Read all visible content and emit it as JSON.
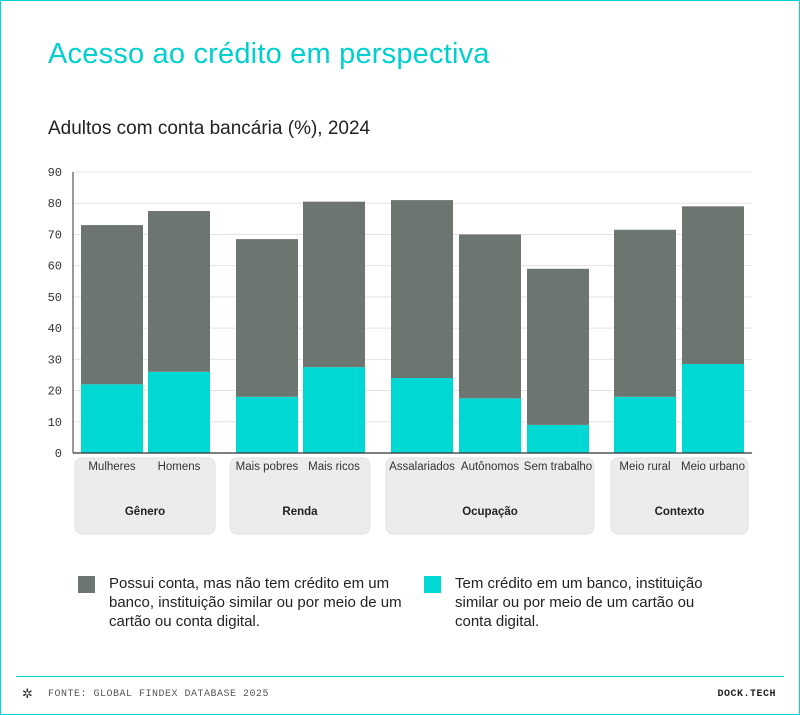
{
  "title": "Acesso ao crédito em perspectiva",
  "subtitle": "Adultos com conta bancária (%), 2024",
  "colors": {
    "accent": "#00cfd0",
    "gray": "#6d7571",
    "cyan": "#00d8d4"
  },
  "chart_data": {
    "type": "bar",
    "stacked": true,
    "title": "Adultos com conta bancária (%), 2024",
    "ylim": [
      0,
      90
    ],
    "yticks": [
      0,
      10,
      20,
      30,
      40,
      50,
      60,
      70,
      80,
      90
    ],
    "grid": true,
    "categories": [
      "Mulheres",
      "Homens",
      "Mais pobres",
      "Mais ricos",
      "Assalariados",
      "Autônomos",
      "Sem trabalho",
      "Meio rural",
      "Meio urbano"
    ],
    "groups": [
      {
        "label": "Gênero",
        "categories": [
          "Mulheres",
          "Homens"
        ]
      },
      {
        "label": "Renda",
        "categories": [
          "Mais pobres",
          "Mais ricos"
        ]
      },
      {
        "label": "Ocupação",
        "categories": [
          "Assalariados",
          "Autônomos",
          "Sem trabalho"
        ]
      },
      {
        "label": "Contexto",
        "categories": [
          "Meio rural",
          "Meio urbano"
        ]
      }
    ],
    "series": [
      {
        "name": "Tem crédito em um banco, instituição similar ou por meio de um cartão ou conta digital.",
        "color": "#00d8d4",
        "values": [
          22,
          26,
          18,
          27.5,
          24,
          17.5,
          9,
          18,
          28.5
        ]
      },
      {
        "name": "Possui conta, mas não tem crédito em um banco, instituição similar ou por meio de um cartão ou conta digital.",
        "color": "#6d7571",
        "values": [
          51,
          51.5,
          50.5,
          53,
          57,
          52.5,
          50,
          53.5,
          50.5
        ]
      }
    ]
  },
  "legend": [
    {
      "color": "#6d7571",
      "text": "Possui conta, mas não tem crédito em um banco, instituição similar ou por meio de um cartão ou conta digital."
    },
    {
      "color": "#00d8d4",
      "text": "Tem crédito em um banco, instituição similar ou por meio de um cartão ou conta digital."
    }
  ],
  "footer": {
    "icon": "✲",
    "source": "FONTE: GLOBAL FINDEX DATABASE 2025",
    "brand": "DOCK.TECH"
  }
}
